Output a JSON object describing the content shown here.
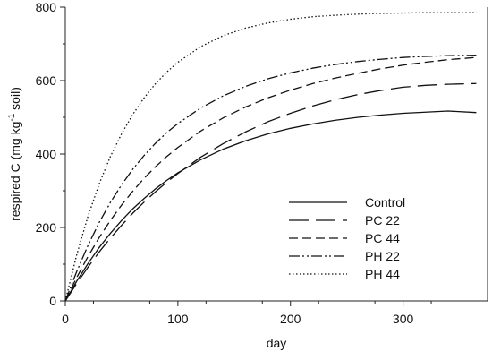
{
  "chart_data": {
    "type": "line",
    "title": "",
    "xlabel": "day",
    "ylabel": {
      "prefix": "respired C (mg kg",
      "superscript": "-1",
      "suffix": " soil)"
    },
    "xlim": [
      0,
      375
    ],
    "ylim": [
      0,
      800
    ],
    "xticks": [
      0,
      100,
      200,
      300
    ],
    "yticks": [
      0,
      200,
      400,
      600,
      800
    ],
    "grid": false,
    "legend_position": "bottom-right",
    "x": [
      0,
      10,
      20,
      30,
      40,
      50,
      60,
      70,
      80,
      90,
      100,
      120,
      140,
      160,
      180,
      200,
      220,
      240,
      260,
      280,
      300,
      320,
      340,
      365
    ],
    "series": [
      {
        "name": "Control",
        "dash": "solid",
        "values": [
          0,
          53,
          101,
          145,
          184,
          219,
          251,
          279,
          305,
          328,
          349,
          384,
          413,
          436,
          455,
          470,
          482,
          492,
          500,
          506,
          511,
          514,
          517,
          513
        ]
      },
      {
        "name": "PC 22",
        "dash": "long-dash",
        "values": [
          0,
          47,
          91,
          133,
          171,
          206,
          239,
          269,
          297,
          323,
          347,
          391,
          428,
          460,
          488,
          511,
          531,
          548,
          562,
          573,
          582,
          587,
          590,
          592
        ]
      },
      {
        "name": "PC 44",
        "dash": "dash",
        "values": [
          0,
          63,
          120,
          172,
          219,
          261,
          299,
          334,
          365,
          393,
          418,
          462,
          498,
          528,
          553,
          574,
          592,
          607,
          620,
          632,
          642,
          650,
          657,
          663
        ]
      },
      {
        "name": "PH 22",
        "dash": "dash-dot-dot",
        "values": [
          0,
          79,
          150,
          213,
          268,
          316,
          359,
          396,
          429,
          458,
          483,
          525,
          558,
          584,
          605,
          621,
          634,
          644,
          652,
          658,
          663,
          666,
          668,
          669
        ]
      },
      {
        "name": "PH 44",
        "dash": "dotted",
        "values": [
          0,
          124,
          229,
          318,
          393,
          455,
          508,
          553,
          591,
          623,
          650,
          692,
          722,
          743,
          757,
          767,
          774,
          778,
          781,
          783,
          784,
          785,
          785,
          785
        ]
      }
    ]
  }
}
